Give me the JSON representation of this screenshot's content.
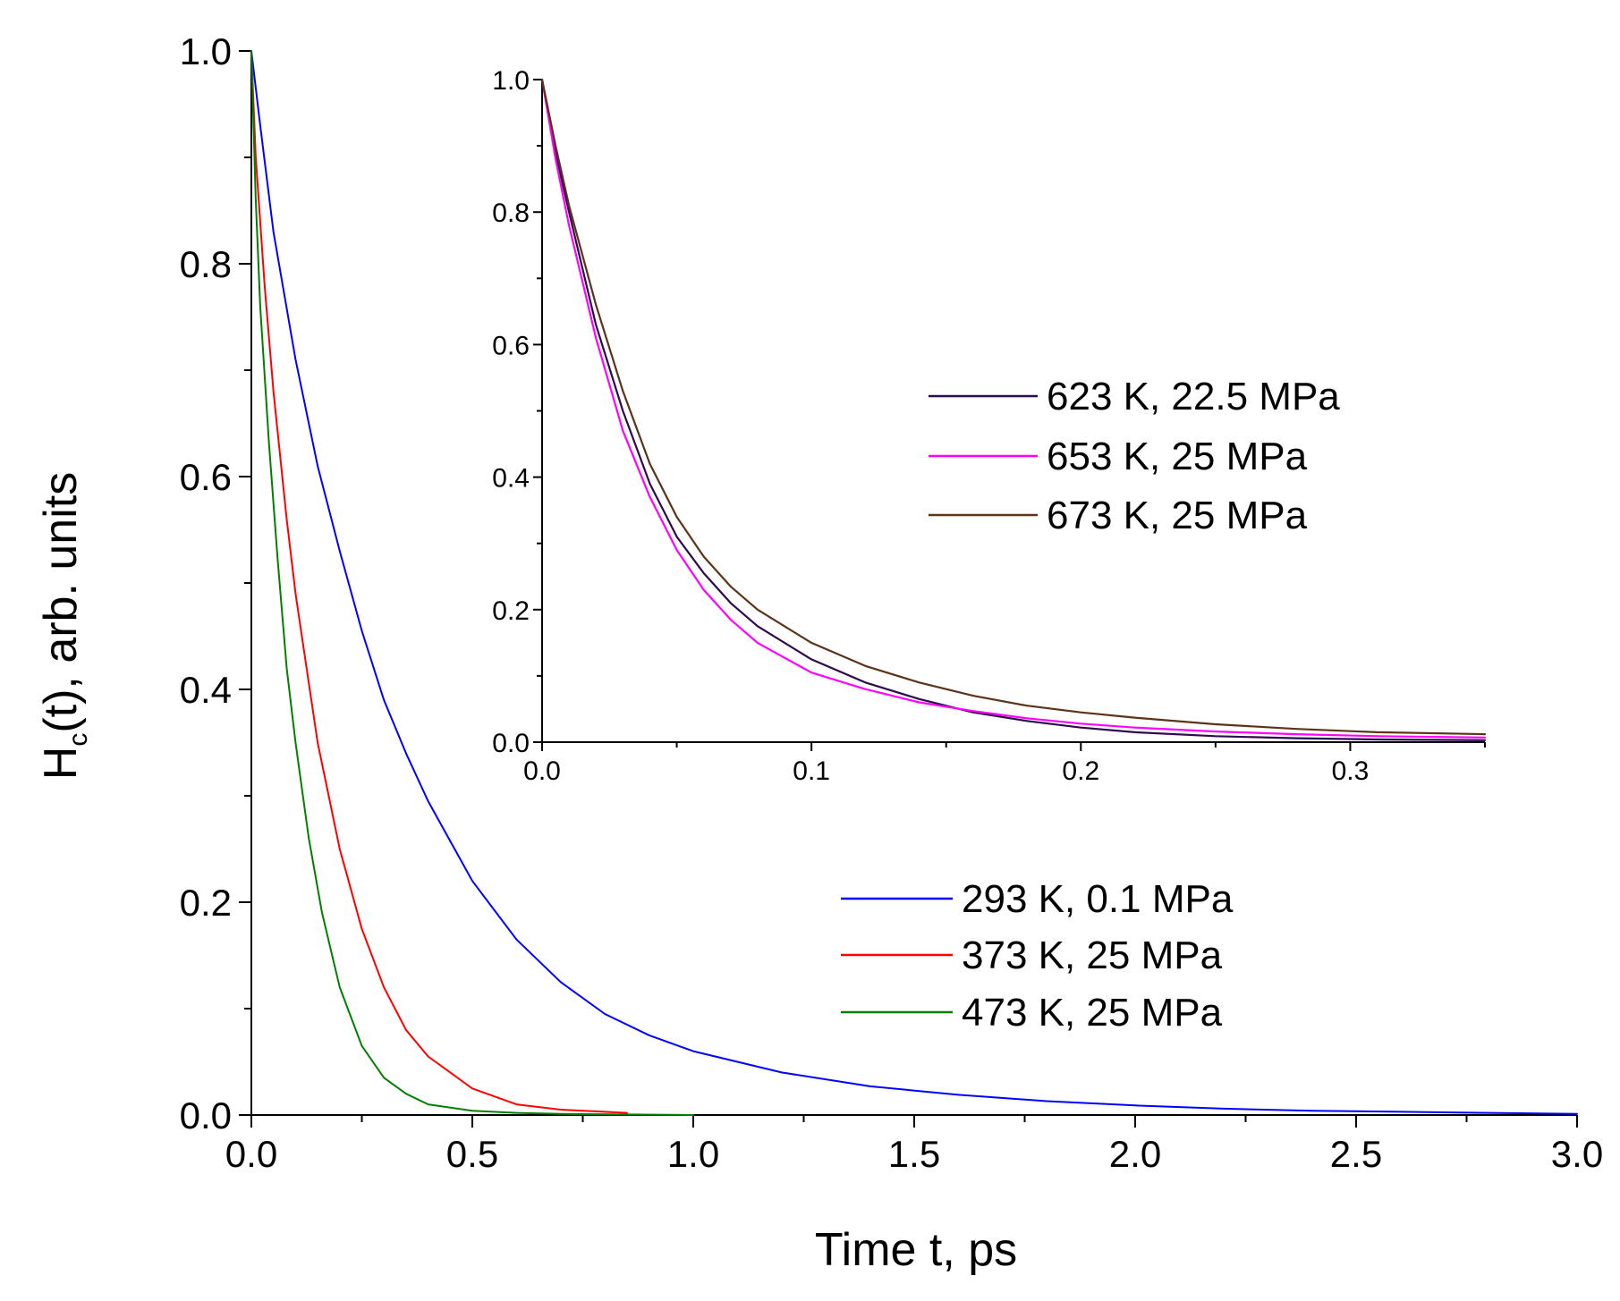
{
  "chart_data": [
    {
      "id": "main",
      "type": "line",
      "title": "",
      "xlabel": "Time t, ps",
      "ylabel_main": "H",
      "ylabel_sub": "c",
      "ylabel_rest": "(t), arb. units",
      "xlim": [
        0,
        3.0
      ],
      "ylim": [
        0,
        1.0
      ],
      "xticks": [
        0,
        0.5,
        1.0,
        1.5,
        2.0,
        2.5,
        3.0
      ],
      "xtick_labels": [
        "0.0",
        "0.5",
        "1.0",
        "1.5",
        "2.0",
        "2.5",
        "3.0"
      ],
      "yticks": [
        0,
        0.2,
        0.4,
        0.6,
        0.8,
        1.0
      ],
      "ytick_labels": [
        "0.0",
        "0.2",
        "0.4",
        "0.6",
        "0.8",
        "1.0"
      ],
      "legend_position": "lower-right",
      "series": [
        {
          "name": "293 K, 0.1 MPa",
          "color": "#0000ff",
          "x": [
            0,
            0.02,
            0.05,
            0.1,
            0.15,
            0.2,
            0.25,
            0.3,
            0.35,
            0.4,
            0.5,
            0.6,
            0.7,
            0.8,
            0.9,
            1.0,
            1.2,
            1.4,
            1.6,
            1.8,
            2.0,
            2.2,
            2.4,
            2.6,
            2.8,
            3.0
          ],
          "y": [
            1.0,
            0.93,
            0.83,
            0.71,
            0.61,
            0.53,
            0.455,
            0.39,
            0.34,
            0.295,
            0.22,
            0.165,
            0.125,
            0.095,
            0.075,
            0.06,
            0.04,
            0.027,
            0.019,
            0.013,
            0.009,
            0.006,
            0.004,
            0.003,
            0.002,
            0.001
          ]
        },
        {
          "name": "373 K, 25 MPa",
          "color": "#ff0000",
          "x": [
            0,
            0.01,
            0.03,
            0.05,
            0.08,
            0.1,
            0.15,
            0.2,
            0.25,
            0.3,
            0.35,
            0.4,
            0.5,
            0.6,
            0.7,
            0.85
          ],
          "y": [
            1.0,
            0.9,
            0.78,
            0.68,
            0.56,
            0.49,
            0.35,
            0.25,
            0.175,
            0.12,
            0.08,
            0.055,
            0.025,
            0.01,
            0.005,
            0.002
          ]
        },
        {
          "name": "473 K, 25 MPa",
          "color": "#008000",
          "x": [
            0,
            0.01,
            0.02,
            0.04,
            0.06,
            0.08,
            0.1,
            0.13,
            0.16,
            0.2,
            0.25,
            0.3,
            0.35,
            0.4,
            0.5,
            0.6,
            0.7,
            0.85,
            1.0
          ],
          "y": [
            1.0,
            0.86,
            0.76,
            0.63,
            0.52,
            0.42,
            0.35,
            0.26,
            0.19,
            0.12,
            0.065,
            0.035,
            0.02,
            0.01,
            0.004,
            0.002,
            0.001,
            0.0005,
            0.0
          ]
        }
      ]
    },
    {
      "id": "inset",
      "type": "line",
      "title": "",
      "xlabel": "",
      "ylabel": "",
      "xlim": [
        0,
        0.35
      ],
      "ylim": [
        0,
        1.0
      ],
      "xticks": [
        0,
        0.1,
        0.2,
        0.3
      ],
      "xtick_labels": [
        "0.0",
        "0.1",
        "0.2",
        "0.3"
      ],
      "yticks": [
        0,
        0.2,
        0.4,
        0.6,
        0.8,
        1.0
      ],
      "ytick_labels": [
        "0.0",
        "0.2",
        "0.4",
        "0.6",
        "0.8",
        "1.0"
      ],
      "legend_position": "upper-right",
      "series": [
        {
          "name": "623 K, 22.5 MPa",
          "color": "#2d0a4e",
          "x": [
            0,
            0.005,
            0.01,
            0.02,
            0.03,
            0.04,
            0.05,
            0.06,
            0.07,
            0.08,
            0.1,
            0.12,
            0.14,
            0.16,
            0.18,
            0.2,
            0.22,
            0.25,
            0.28,
            0.31,
            0.35
          ],
          "y": [
            1.0,
            0.89,
            0.8,
            0.63,
            0.5,
            0.39,
            0.31,
            0.255,
            0.21,
            0.175,
            0.125,
            0.09,
            0.065,
            0.045,
            0.032,
            0.022,
            0.015,
            0.009,
            0.006,
            0.004,
            0.003
          ]
        },
        {
          "name": "653 K, 25 MPa",
          "color": "#ff00ff",
          "x": [
            0,
            0.005,
            0.01,
            0.02,
            0.03,
            0.04,
            0.05,
            0.06,
            0.07,
            0.08,
            0.1,
            0.12,
            0.14,
            0.16,
            0.18,
            0.2,
            0.22,
            0.25,
            0.28,
            0.31,
            0.35
          ],
          "y": [
            1.0,
            0.88,
            0.78,
            0.61,
            0.47,
            0.37,
            0.29,
            0.23,
            0.185,
            0.15,
            0.105,
            0.08,
            0.06,
            0.047,
            0.036,
            0.028,
            0.022,
            0.016,
            0.012,
            0.009,
            0.007
          ]
        },
        {
          "name": "673 K, 25 MPa",
          "color": "#5c3317",
          "x": [
            0,
            0.005,
            0.01,
            0.02,
            0.03,
            0.04,
            0.05,
            0.06,
            0.07,
            0.08,
            0.1,
            0.12,
            0.14,
            0.16,
            0.18,
            0.2,
            0.22,
            0.25,
            0.28,
            0.31,
            0.35
          ],
          "y": [
            1.0,
            0.9,
            0.81,
            0.66,
            0.53,
            0.42,
            0.34,
            0.28,
            0.235,
            0.2,
            0.15,
            0.115,
            0.09,
            0.07,
            0.055,
            0.045,
            0.037,
            0.027,
            0.02,
            0.015,
            0.012
          ]
        }
      ]
    }
  ]
}
